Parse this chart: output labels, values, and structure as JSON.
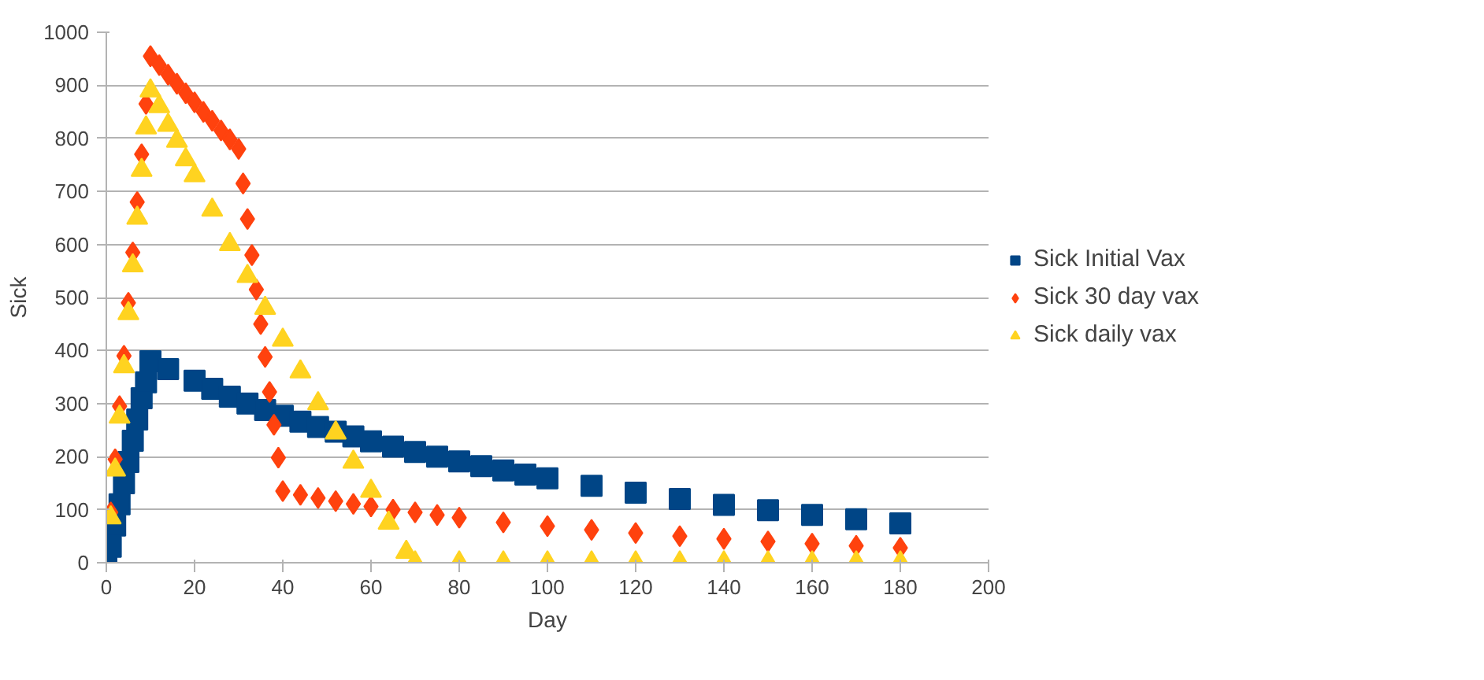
{
  "chart_data": {
    "type": "scatter",
    "xlabel": "Day",
    "ylabel": "Sick",
    "xlim": [
      0,
      200
    ],
    "xticks": [
      0,
      20,
      40,
      60,
      80,
      100,
      120,
      140,
      160,
      180,
      200
    ],
    "ylim": [
      0,
      1000
    ],
    "yticks": [
      0,
      100,
      200,
      300,
      400,
      500,
      600,
      700,
      800,
      900,
      1000
    ],
    "grid": "y",
    "legend": "right",
    "series": [
      {
        "name": "Sick Initial Vax",
        "color": "#004586",
        "marker": "square",
        "x": [
          0,
          1,
          2,
          3,
          4,
          5,
          6,
          7,
          8,
          9,
          10,
          14,
          20,
          24,
          28,
          32,
          36,
          40,
          44,
          48,
          52,
          56,
          60,
          65,
          70,
          75,
          80,
          85,
          90,
          95,
          100,
          110,
          120,
          130,
          140,
          150,
          160,
          170,
          180
        ],
        "values": [
          0,
          30,
          70,
          110,
          150,
          190,
          230,
          270,
          310,
          340,
          380,
          365,
          343,
          328,
          313,
          300,
          288,
          277,
          266,
          256,
          247,
          238,
          229,
          219,
          209,
          200,
          191,
          182,
          174,
          166,
          159,
          145,
          132,
          120,
          109,
          99,
          90,
          82,
          74
        ]
      },
      {
        "name": "Sick 30 day vax",
        "color": "#ff420e",
        "marker": "diamond",
        "x": [
          1,
          2,
          3,
          4,
          5,
          6,
          7,
          8,
          9,
          10,
          12,
          14,
          16,
          18,
          20,
          22,
          24,
          26,
          28,
          30,
          31,
          32,
          33,
          34,
          35,
          36,
          37,
          38,
          39,
          40,
          44,
          48,
          52,
          56,
          60,
          65,
          70,
          75,
          80,
          90,
          100,
          110,
          120,
          130,
          140,
          150,
          160,
          170,
          180
        ],
        "values": [
          95,
          195,
          295,
          390,
          490,
          585,
          680,
          770,
          865,
          955,
          938,
          920,
          903,
          885,
          868,
          850,
          833,
          815,
          798,
          780,
          715,
          648,
          580,
          515,
          450,
          388,
          322,
          260,
          198,
          135,
          128,
          122,
          116,
          111,
          106,
          100,
          95,
          90,
          85,
          76,
          69,
          62,
          56,
          50,
          45,
          40,
          36,
          32,
          28
        ]
      },
      {
        "name": "Sick daily vax",
        "color": "#ffd320",
        "marker": "triangle",
        "x": [
          1,
          2,
          3,
          4,
          5,
          6,
          7,
          8,
          9,
          10,
          12,
          14,
          16,
          18,
          20,
          24,
          28,
          32,
          36,
          40,
          44,
          48,
          52,
          56,
          60,
          64,
          68,
          70,
          80,
          90,
          100,
          110,
          120,
          130,
          140,
          150,
          160,
          170,
          180
        ],
        "values": [
          85,
          175,
          275,
          370,
          470,
          560,
          650,
          740,
          820,
          890,
          860,
          825,
          795,
          760,
          730,
          665,
          600,
          540,
          480,
          420,
          360,
          300,
          245,
          190,
          135,
          75,
          20,
          0,
          0,
          0,
          0,
          0,
          0,
          0,
          0,
          0,
          0,
          0,
          0
        ]
      }
    ]
  }
}
